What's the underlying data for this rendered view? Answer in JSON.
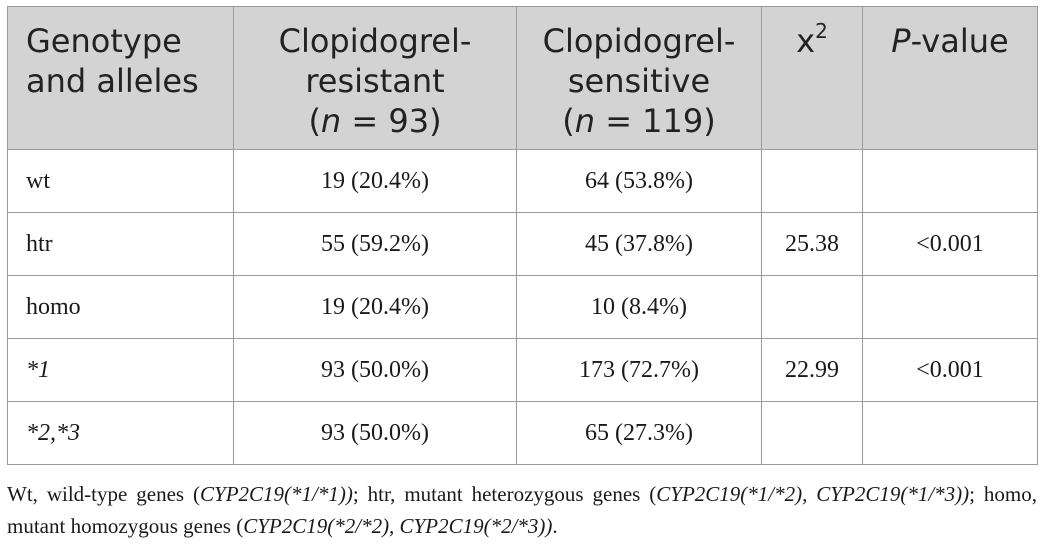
{
  "table": {
    "headers": {
      "genotype": {
        "line1": "Genotype",
        "line2": "and alleles"
      },
      "resistant": {
        "line1": "Clopidogrel-",
        "line2": "resistant",
        "n_open": "(",
        "n_var": "n",
        "n_value": " = 93)"
      },
      "sensitive": {
        "line1": "Clopidogrel-",
        "line2": "sensitive",
        "n_open": "(",
        "n_var": "n",
        "n_value": " = 119)"
      },
      "chi": {
        "base": "x",
        "sup": "2"
      },
      "pvalue": {
        "var": "P",
        "rest": "-value"
      }
    },
    "rows": [
      {
        "label": "wt",
        "resistant": "19 (20.4%)",
        "sensitive": "64 (53.8%)",
        "chi": "",
        "p": ""
      },
      {
        "label": "htr",
        "resistant": "55 (59.2%)",
        "sensitive": "45 (37.8%)",
        "chi": "25.38",
        "p": "<0.001"
      },
      {
        "label": "homo",
        "resistant": "19 (20.4%)",
        "sensitive": "10 (8.4%)",
        "chi": "",
        "p": ""
      },
      {
        "label": "*1",
        "resistant": "93 (50.0%)",
        "sensitive": "173 (72.7%)",
        "chi": "22.99",
        "p": "<0.001"
      },
      {
        "label": "*2,*3",
        "resistant": "93 (50.0%)",
        "sensitive": "65 (27.3%)",
        "chi": "",
        "p": ""
      }
    ]
  },
  "footnote": {
    "p1": "Wt, wild-type genes (",
    "i1": "CYP2C19(*1/*1))",
    "p2": "; htr, mutant heterozygous genes (",
    "i2": "CYP2C19(*1/*2), CYP2C19(*1/*3))",
    "p3": "; homo, mutant homozygous genes (",
    "i3": "CYP2C19(*2/*2), CYP2C19(*2/*3))",
    "p4": "."
  }
}
